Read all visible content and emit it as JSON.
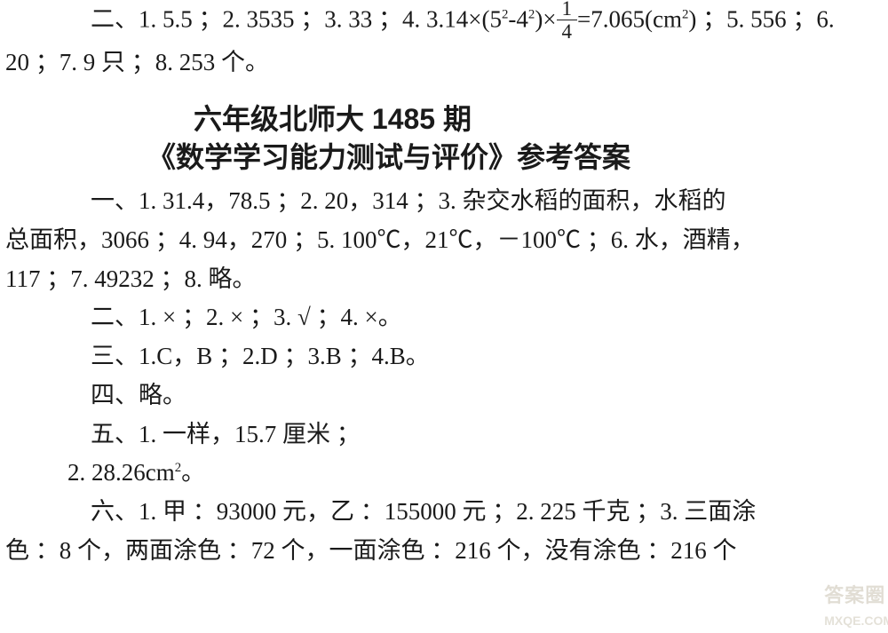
{
  "topBlock": {
    "line1_a": "二、1. 5.5 ；2. 3535 ；3. 33 ；4. 3.14×(5",
    "line1_sup1": "2",
    "line1_b": "-4",
    "line1_sup2": "2",
    "line1_c": ")×",
    "frac_num": "1",
    "frac_den": "4",
    "line1_d": "=7.065(cm",
    "line1_sup3": "2",
    "line1_e": ") ；5. 556 ；6.",
    "line2": "20 ；7. 9 只 ；8. 253 个。"
  },
  "title": {
    "l1": "六年级北师大 1485 期",
    "l2": "《数学学习能力测试与评价》参考答案"
  },
  "body": {
    "p1a": "一、1. 31.4，78.5 ；2. 20，314 ；3. 杂交水稻的面积，水稻的",
    "p1b": "总面积，3066 ；4. 94，270 ；5. 100℃，21℃，－100℃ ；6. 水，酒精，",
    "p1c": "117 ；7. 49232 ；8. 略。",
    "p2": "二、1. × ；2. × ；3. √ ；4. ×。",
    "p3": "三、1.C，B ；2.D ；3.B ；4.B。",
    "p4": "四、略。",
    "p5": "五、1. 一样，15.7 厘米 ；",
    "p5b_a": "2. 28.26cm",
    "p5b_sup": "2",
    "p5b_b": "。",
    "p6a": "六、1. 甲 ：93000 元，乙 ：155000 元 ；2. 225 千克 ；3. 三面涂",
    "p6b": "色 ：8 个，两面涂色 ：72 个，一面涂色 ：216 个，没有涂色 ：216 个"
  },
  "watermark": {
    "l1": "答案圈",
    "l2": "MXQE.COM"
  }
}
